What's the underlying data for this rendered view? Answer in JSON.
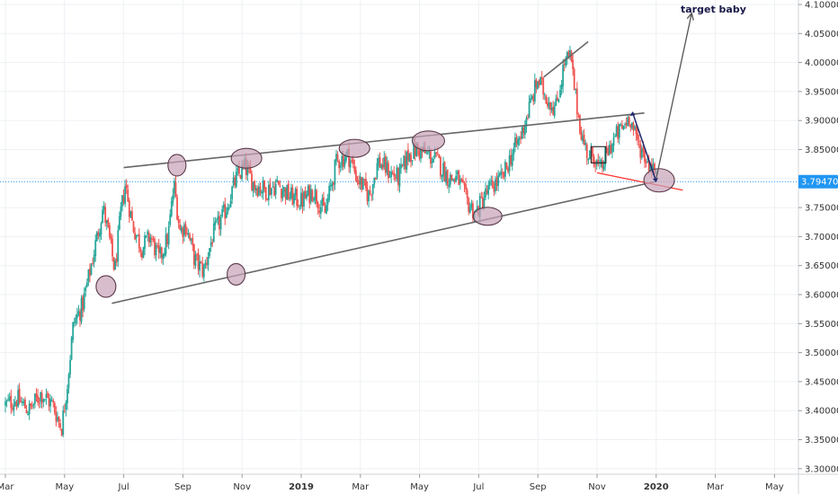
{
  "chart_data": {
    "type": "candlestick",
    "title": "",
    "xlabel": "",
    "ylabel": "",
    "ylim": [
      3.28,
      4.11
    ],
    "y_ticks": [
      "4.10000",
      "4.05000",
      "4.00000",
      "3.95000",
      "3.90000",
      "3.85000",
      "3.80000",
      "3.75000",
      "3.70000",
      "3.65000",
      "3.60000",
      "3.55000",
      "3.50000",
      "3.45000",
      "3.40000",
      "3.35000",
      "3.30000"
    ],
    "x_ticks": [
      {
        "label": "Mar",
        "month": 2.0,
        "bold": false
      },
      {
        "label": "May",
        "month": 4.0,
        "bold": false
      },
      {
        "label": "Jul",
        "month": 6.0,
        "bold": false
      },
      {
        "label": "Sep",
        "month": 8.0,
        "bold": false
      },
      {
        "label": "Nov",
        "month": 10.0,
        "bold": false
      },
      {
        "label": "2019",
        "month": 12.0,
        "bold": true
      },
      {
        "label": "Mar",
        "month": 14.0,
        "bold": false
      },
      {
        "label": "May",
        "month": 16.0,
        "bold": false
      },
      {
        "label": "Jul",
        "month": 18.0,
        "bold": false
      },
      {
        "label": "Sep",
        "month": 20.0,
        "bold": false
      },
      {
        "label": "Nov",
        "month": 22.0,
        "bold": false
      },
      {
        "label": "2020",
        "month": 24.0,
        "bold": true
      },
      {
        "label": "Mar",
        "month": 26.0,
        "bold": false
      },
      {
        "label": "May",
        "month": 28.0,
        "bold": false
      }
    ],
    "x_range_months": [
      2.0,
      29.3
    ],
    "current_price": {
      "label": "3.79470",
      "value": 3.7947
    },
    "up_color": "#26a69a",
    "down_color": "#ef5350",
    "price_path": [
      [
        2.0,
        3.41
      ],
      [
        2.4,
        3.42
      ],
      [
        2.8,
        3.4
      ],
      [
        3.2,
        3.43
      ],
      [
        3.6,
        3.41
      ],
      [
        3.9,
        3.37
      ],
      [
        4.1,
        3.45
      ],
      [
        4.3,
        3.55
      ],
      [
        4.6,
        3.58
      ],
      [
        4.9,
        3.65
      ],
      [
        5.1,
        3.7
      ],
      [
        5.3,
        3.75
      ],
      [
        5.5,
        3.7
      ],
      [
        5.7,
        3.64
      ],
      [
        5.9,
        3.74
      ],
      [
        6.05,
        3.79
      ],
      [
        6.3,
        3.72
      ],
      [
        6.6,
        3.68
      ],
      [
        6.9,
        3.7
      ],
      [
        7.2,
        3.66
      ],
      [
        7.5,
        3.7
      ],
      [
        7.7,
        3.79
      ],
      [
        7.9,
        3.71
      ],
      [
        8.1,
        3.72
      ],
      [
        8.4,
        3.66
      ],
      [
        8.7,
        3.64
      ],
      [
        9.0,
        3.7
      ],
      [
        9.4,
        3.74
      ],
      [
        9.8,
        3.8
      ],
      [
        10.1,
        3.82
      ],
      [
        10.4,
        3.79
      ],
      [
        10.8,
        3.78
      ],
      [
        11.2,
        3.79
      ],
      [
        11.6,
        3.77
      ],
      [
        12.0,
        3.76
      ],
      [
        12.4,
        3.78
      ],
      [
        12.8,
        3.74
      ],
      [
        13.2,
        3.83
      ],
      [
        13.6,
        3.84
      ],
      [
        13.9,
        3.8
      ],
      [
        14.3,
        3.77
      ],
      [
        14.6,
        3.83
      ],
      [
        15.0,
        3.81
      ],
      [
        15.3,
        3.8
      ],
      [
        15.6,
        3.84
      ],
      [
        15.9,
        3.85
      ],
      [
        16.3,
        3.84
      ],
      [
        16.6,
        3.83
      ],
      [
        17.0,
        3.8
      ],
      [
        17.3,
        3.8
      ],
      [
        17.6,
        3.76
      ],
      [
        17.9,
        3.74
      ],
      [
        18.2,
        3.77
      ],
      [
        18.5,
        3.79
      ],
      [
        18.8,
        3.8
      ],
      [
        19.1,
        3.84
      ],
      [
        19.4,
        3.87
      ],
      [
        19.7,
        3.92
      ],
      [
        20.0,
        3.97
      ],
      [
        20.3,
        3.94
      ],
      [
        20.6,
        3.92
      ],
      [
        20.9,
        4.0
      ],
      [
        21.1,
        4.01
      ],
      [
        21.3,
        3.93
      ],
      [
        21.5,
        3.87
      ],
      [
        21.7,
        3.84
      ],
      [
        21.9,
        3.84
      ],
      [
        22.1,
        3.81
      ],
      [
        22.3,
        3.84
      ],
      [
        22.6,
        3.87
      ],
      [
        22.9,
        3.89
      ],
      [
        23.1,
        3.91
      ],
      [
        23.3,
        3.87
      ],
      [
        23.5,
        3.85
      ],
      [
        23.7,
        3.83
      ],
      [
        23.9,
        3.82
      ],
      [
        24.0,
        3.7947
      ]
    ],
    "annotations": [
      {
        "text": "target baby"
      }
    ]
  },
  "colors": {
    "grid": "#eef0f3",
    "axis_text": "#333333",
    "trendline": "#666666",
    "support_line": "#ff3333",
    "arrow_line": "#555555",
    "arrow_blue": "#1f2a6e",
    "ellipse_fill": "#c8a2b8",
    "ellipse_stroke": "#5a3a4a",
    "price_tag": "#2196f3"
  }
}
